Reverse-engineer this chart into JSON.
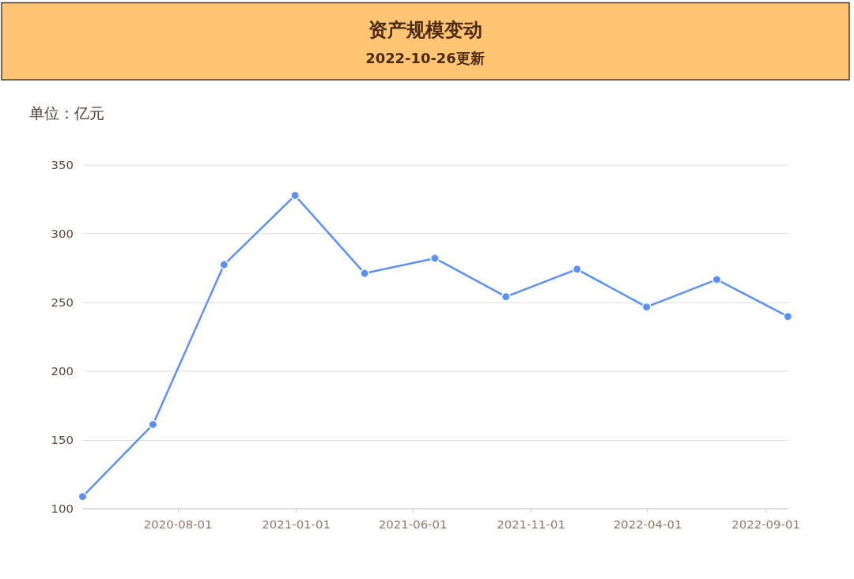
{
  "chart_data": {
    "type": "line",
    "title": "资产规模变动",
    "subtitle": "2022-10-26更新",
    "ylabel": "单位：亿元",
    "x": [
      "2020-03-31",
      "2020-06-30",
      "2020-09-30",
      "2020-12-31",
      "2021-03-31",
      "2021-06-30",
      "2021-09-30",
      "2021-12-31",
      "2022-03-31",
      "2022-06-30",
      "2022-09-30"
    ],
    "series": [
      {
        "color": "#5b8ff9",
        "values": [
          108.6,
          161,
          277.3,
          327.7,
          271,
          282,
          254,
          274,
          246.5,
          266.5,
          239.6
        ]
      }
    ],
    "xlim": [
      "2020-03-31",
      "2022-09-30"
    ],
    "xticks": [
      "2020-08-01",
      "2021-01-01",
      "2021-06-01",
      "2021-11-01",
      "2022-04-01",
      "2022-09-01"
    ],
    "ylim": [
      100,
      350
    ],
    "yticks": [
      100,
      150,
      200,
      250,
      300,
      350
    ],
    "grid": "y",
    "marker": "circle",
    "line_style": "solid",
    "legend": false
  }
}
